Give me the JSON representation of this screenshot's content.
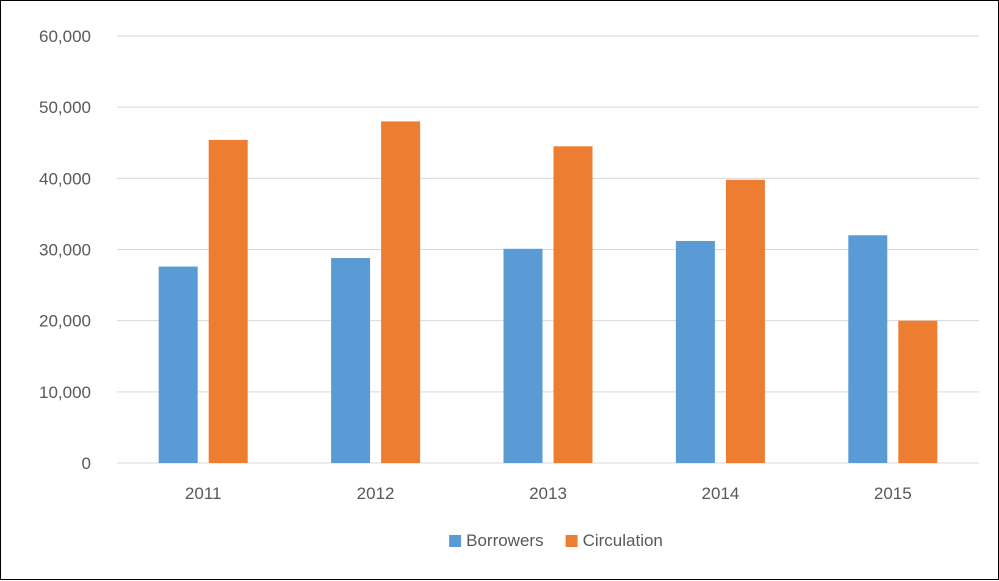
{
  "chart_data": {
    "type": "bar",
    "title": "",
    "xlabel": "",
    "ylabel": "",
    "categories": [
      "2011",
      "2012",
      "2013",
      "2014",
      "2015"
    ],
    "series": [
      {
        "name": "Borrowers",
        "color": "#5B9BD5",
        "values": [
          27600,
          28800,
          30100,
          31200,
          32000
        ]
      },
      {
        "name": "Circulation",
        "color": "#ED7D31",
        "values": [
          45400,
          48000,
          44500,
          39800,
          20000
        ]
      }
    ],
    "ylim": [
      0,
      60000
    ],
    "yticks": [
      0,
      10000,
      20000,
      30000,
      40000,
      50000,
      60000
    ],
    "ytick_labels": [
      "0",
      "10,000",
      "20,000",
      "30,000",
      "40,000",
      "50,000",
      "60,000"
    ],
    "grid": true,
    "legend_position": "bottom",
    "gridline_color": "#D9D9D9",
    "text_color": "#595959"
  }
}
